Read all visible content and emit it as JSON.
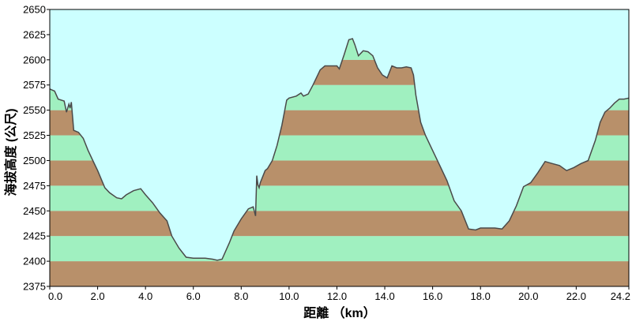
{
  "chart_data": {
    "type": "area",
    "title": "",
    "xlabel": "距離 （km）",
    "ylabel": "海拔高度 (公尺)",
    "xlim": [
      0,
      24.2
    ],
    "ylim": [
      2375,
      2650
    ],
    "x_ticks": [
      0,
      2,
      4,
      6,
      8,
      10,
      12,
      14,
      16,
      18,
      20,
      22,
      24.2
    ],
    "x_tick_labels": [
      "0.0",
      "2.0",
      "4.0",
      "6.0",
      "8.0",
      "10.0",
      "12.0",
      "14.0",
      "16.0",
      "18.0",
      "20.0",
      "22.0",
      "24.2"
    ],
    "y_ticks": [
      2375,
      2400,
      2425,
      2450,
      2475,
      2500,
      2525,
      2550,
      2575,
      2600,
      2625,
      2650
    ],
    "y_tick_labels": [
      "2375",
      "2400",
      "2425",
      "2450",
      "2475",
      "2500",
      "2525",
      "2550",
      "2575",
      "2600",
      "2625",
      "2650"
    ],
    "band_interval": 25,
    "colors": {
      "sky": "#ccffff",
      "band_brown": "#b8906a",
      "band_green": "#a0f0c0",
      "outline": "#4a4a4a"
    },
    "profile": {
      "x": [
        0,
        0.2,
        0.35,
        0.6,
        0.7,
        0.8,
        0.85,
        0.9,
        1.0,
        1.2,
        1.4,
        1.6,
        1.8,
        2.0,
        2.3,
        2.5,
        2.8,
        3.0,
        3.2,
        3.5,
        3.8,
        4.0,
        4.3,
        4.6,
        4.9,
        5.1,
        5.4,
        5.7,
        6.0,
        6.2,
        6.5,
        6.8,
        7.0,
        7.2,
        7.5,
        7.7,
        8.0,
        8.3,
        8.5,
        8.6,
        8.65,
        8.7,
        8.75,
        8.8,
        9.0,
        9.1,
        9.3,
        9.5,
        9.7,
        9.9,
        10.0,
        10.3,
        10.5,
        10.6,
        10.8,
        11.0,
        11.3,
        11.5,
        11.7,
        12.0,
        12.1,
        12.3,
        12.5,
        12.65,
        12.75,
        12.9,
        13.1,
        13.3,
        13.5,
        13.7,
        13.9,
        14.1,
        14.3,
        14.5,
        14.7,
        14.9,
        15.1,
        15.2,
        15.3,
        15.5,
        15.7,
        16.0,
        16.3,
        16.6,
        16.9,
        17.2,
        17.5,
        17.8,
        18.0,
        18.3,
        18.6,
        18.9,
        19.2,
        19.5,
        19.8,
        20.1,
        20.4,
        20.7,
        21.0,
        21.3,
        21.6,
        21.9,
        22.2,
        22.5,
        22.8,
        23.0,
        23.2,
        23.4,
        23.6,
        23.8,
        24.0,
        24.2
      ],
      "y": [
        2571,
        2569,
        2561,
        2559,
        2548,
        2556,
        2552,
        2558,
        2530,
        2528,
        2522,
        2510,
        2500,
        2490,
        2473,
        2468,
        2463,
        2462,
        2466,
        2470,
        2472,
        2466,
        2458,
        2448,
        2440,
        2425,
        2413,
        2404,
        2403,
        2403,
        2403,
        2402,
        2401,
        2402,
        2418,
        2430,
        2442,
        2452,
        2454,
        2445,
        2485,
        2476,
        2473,
        2478,
        2490,
        2492,
        2500,
        2515,
        2535,
        2560,
        2562,
        2564,
        2567,
        2564,
        2566,
        2575,
        2590,
        2594,
        2594,
        2594,
        2591,
        2605,
        2620,
        2621,
        2615,
        2604,
        2609,
        2608,
        2604,
        2592,
        2585,
        2582,
        2594,
        2592,
        2592,
        2593,
        2592,
        2585,
        2565,
        2538,
        2525,
        2510,
        2495,
        2480,
        2460,
        2450,
        2432,
        2431,
        2433,
        2433,
        2433,
        2432,
        2440,
        2455,
        2474,
        2478,
        2488,
        2499,
        2497,
        2495,
        2490,
        2493,
        2497,
        2500,
        2520,
        2538,
        2548,
        2552,
        2557,
        2561,
        2561,
        2562
      ]
    }
  }
}
